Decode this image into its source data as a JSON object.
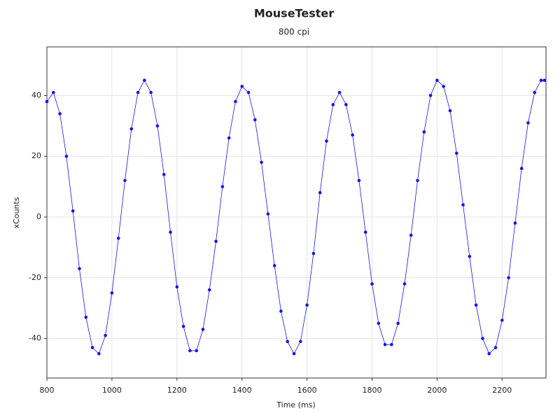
{
  "chart_data": {
    "type": "scatter",
    "title": "MouseTester",
    "subtitle": "800 cpi",
    "x_label": "Time (ms)",
    "y_label": "xCounts",
    "x": [
      800,
      820,
      840,
      860,
      880,
      900,
      920,
      940,
      960,
      980,
      1000,
      1020,
      1040,
      1060,
      1080,
      1100,
      1120,
      1140,
      1160,
      1180,
      1200,
      1220,
      1240,
      1260,
      1280,
      1300,
      1320,
      1340,
      1360,
      1380,
      1400,
      1420,
      1440,
      1460,
      1480,
      1500,
      1520,
      1540,
      1560,
      1580,
      1600,
      1620,
      1640,
      1660,
      1680,
      1700,
      1720,
      1740,
      1760,
      1780,
      1800,
      1820,
      1840,
      1860,
      1880,
      1900,
      1920,
      1940,
      1960,
      1980,
      2000,
      2020,
      2040,
      2060,
      2080,
      2100,
      2120,
      2140,
      2160,
      2180,
      2200,
      2220,
      2240,
      2260,
      2280,
      2300,
      2320,
      2330
    ],
    "series": [
      {
        "color": "#1414f0",
        "values": [
          38,
          41,
          34,
          20,
          2,
          -17,
          -33,
          -43,
          -45,
          -39,
          -25,
          -7,
          12,
          29,
          41,
          45,
          41,
          30,
          14,
          -5,
          -23,
          -36,
          -44,
          -44,
          -37,
          -24,
          -8,
          10,
          26,
          38,
          43,
          41,
          32,
          18,
          1,
          -16,
          -31,
          -41,
          -45,
          -41,
          -29,
          -12,
          8,
          25,
          37,
          41,
          37,
          27,
          12,
          -5,
          -22,
          -35,
          -42,
          -42,
          -35,
          -22,
          -6,
          12,
          28,
          40,
          45,
          43,
          35,
          21,
          4,
          -13,
          -29,
          -40,
          -45,
          -43,
          -34,
          -20,
          -2,
          16,
          31,
          41,
          45,
          45
        ]
      }
    ],
    "xlim": [
      800,
      2335
    ],
    "ylim": [
      -53,
      56
    ],
    "xticks": [
      800,
      1000,
      1200,
      1400,
      1600,
      1800,
      2000,
      2200
    ],
    "yticks": [
      -40,
      -20,
      0,
      20,
      40
    ],
    "grid": true
  }
}
